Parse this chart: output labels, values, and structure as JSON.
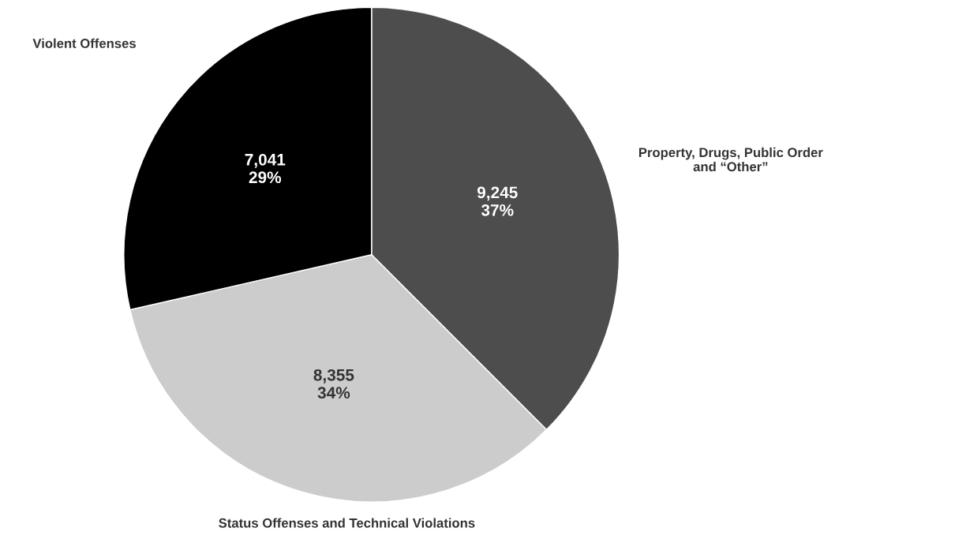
{
  "chart_data": {
    "type": "pie",
    "categories": [
      "Property, Drugs, Public Order\nand “Other”",
      "Status Offenses and Technical Violations",
      "Violent Offenses"
    ],
    "values": [
      9245,
      8355,
      7041
    ],
    "value_labels": [
      "9,245\n37%",
      "8,355\n34%",
      "7,041\n29%"
    ],
    "colors": [
      "#4d4d4d",
      "#cccccc",
      "#000000"
    ]
  }
}
